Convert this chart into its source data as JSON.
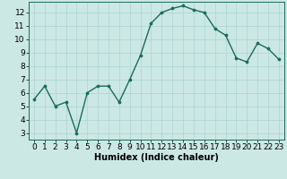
{
  "x": [
    0,
    1,
    2,
    3,
    4,
    5,
    6,
    7,
    8,
    9,
    10,
    11,
    12,
    13,
    14,
    15,
    16,
    17,
    18,
    19,
    20,
    21,
    22,
    23
  ],
  "y": [
    5.5,
    6.5,
    5.0,
    5.3,
    3.0,
    6.0,
    6.5,
    6.5,
    5.3,
    7.0,
    8.8,
    11.2,
    12.0,
    12.3,
    12.5,
    12.2,
    12.0,
    10.8,
    10.3,
    8.6,
    8.3,
    9.7,
    9.3,
    8.5
  ],
  "line_color": "#1a6b5a",
  "marker_color": "#1a6b5a",
  "bg_color": "#cce8e4",
  "grid_color": "#b0d8d4",
  "xlabel": "Humidex (Indice chaleur)",
  "ylim": [
    2.5,
    12.8
  ],
  "xlim": [
    -0.5,
    23.5
  ],
  "yticks": [
    3,
    4,
    5,
    6,
    7,
    8,
    9,
    10,
    11,
    12
  ],
  "xticks": [
    0,
    1,
    2,
    3,
    4,
    5,
    6,
    7,
    8,
    9,
    10,
    11,
    12,
    13,
    14,
    15,
    16,
    17,
    18,
    19,
    20,
    21,
    22,
    23
  ],
  "xlabel_fontsize": 7,
  "tick_fontsize": 6.5,
  "line_width": 1.0,
  "marker_size": 2.2
}
